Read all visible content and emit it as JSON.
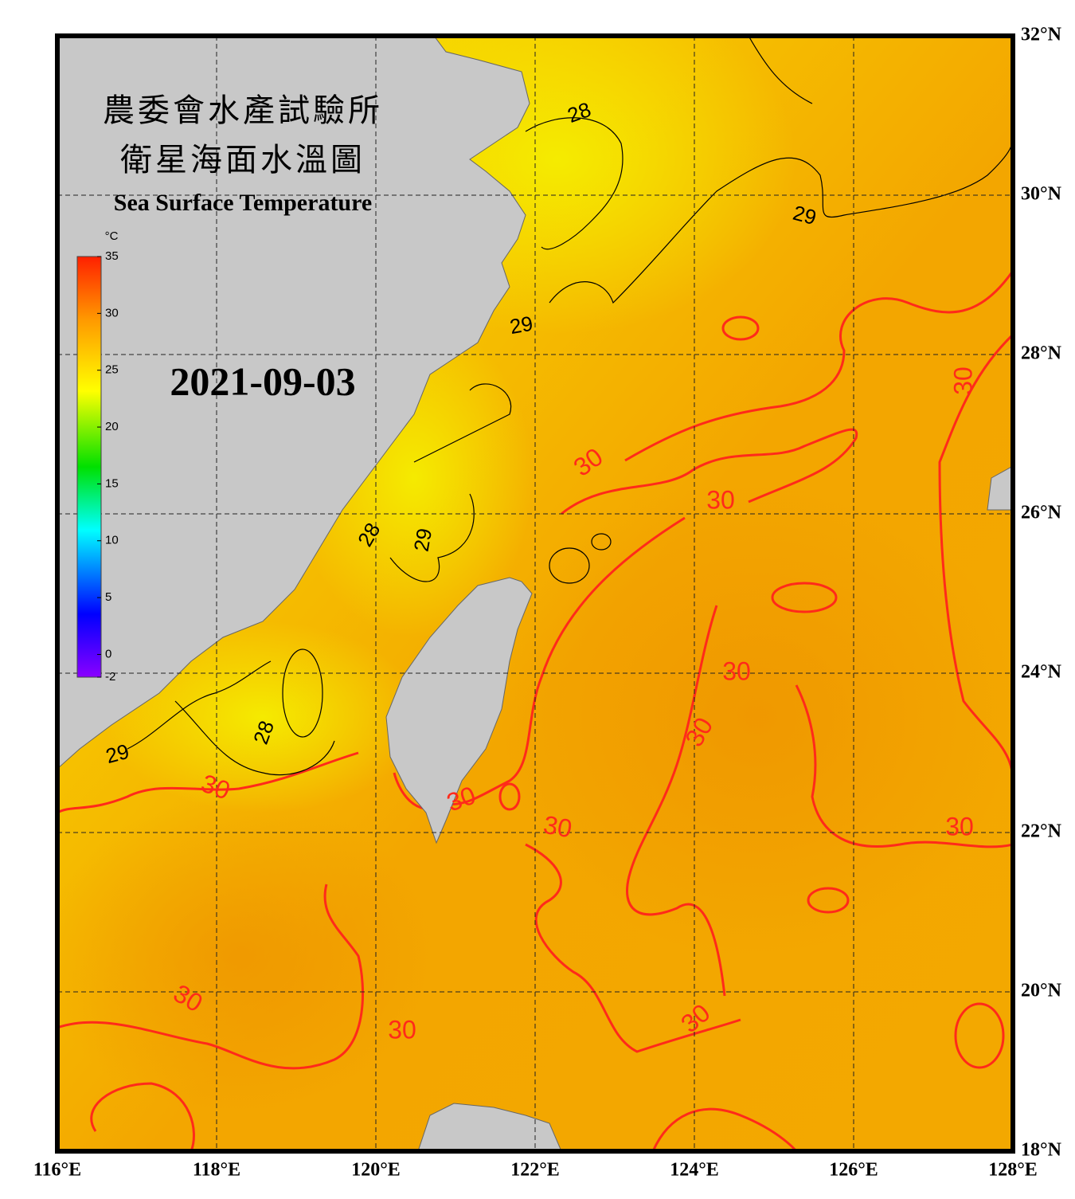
{
  "header": {
    "title_zh": [
      "農委會水產試驗所",
      "衛星海面水溫圖"
    ],
    "title_en": "Sea Surface Temperature",
    "date": "2021-09-03"
  },
  "colorbar": {
    "unit": "°C",
    "min": -2,
    "max": 35,
    "ticks": [
      35,
      30,
      25,
      20,
      15,
      10,
      5,
      0,
      -2
    ]
  },
  "map": {
    "lon_ticks": [
      {
        "value": 116,
        "label": "116°E"
      },
      {
        "value": 118,
        "label": "118°E"
      },
      {
        "value": 120,
        "label": "120°E"
      },
      {
        "value": 122,
        "label": "122°E"
      },
      {
        "value": 124,
        "label": "124°E"
      },
      {
        "value": 126,
        "label": "126°E"
      },
      {
        "value": 128,
        "label": "128°E"
      }
    ],
    "lat_ticks": [
      {
        "value": 32,
        "label": "32°N"
      },
      {
        "value": 30,
        "label": "30°N"
      },
      {
        "value": 28,
        "label": "28°N"
      },
      {
        "value": 26,
        "label": "26°N"
      },
      {
        "value": 24,
        "label": "24°N"
      },
      {
        "value": 22,
        "label": "22°N"
      },
      {
        "value": 20,
        "label": "20°N"
      },
      {
        "value": 18,
        "label": "18°N"
      }
    ],
    "contour_labels": [
      28,
      29,
      29,
      28,
      29,
      28,
      29,
      30,
      30,
      30,
      30,
      30,
      30,
      30,
      30,
      30,
      30,
      30,
      30
    ]
  }
}
